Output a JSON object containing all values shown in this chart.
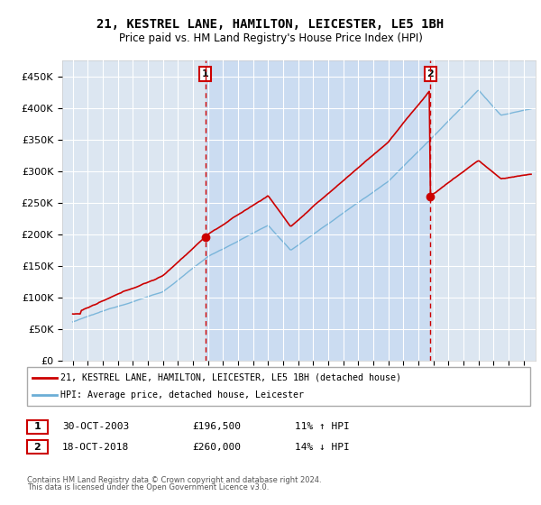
{
  "title": "21, KESTREL LANE, HAMILTON, LEICESTER, LE5 1BH",
  "subtitle": "Price paid vs. HM Land Registry's House Price Index (HPI)",
  "year_start": 1995,
  "year_end": 2025,
  "ylim": [
    0,
    475000
  ],
  "yticks": [
    0,
    50000,
    100000,
    150000,
    200000,
    250000,
    300000,
    350000,
    400000,
    450000
  ],
  "ytick_labels": [
    "£0",
    "£50K",
    "£100K",
    "£150K",
    "£200K",
    "£250K",
    "£300K",
    "£350K",
    "£400K",
    "£450K"
  ],
  "purchase1_year": 2003.83,
  "purchase1_price": 196500,
  "purchase2_year": 2018.79,
  "purchase2_price": 260000,
  "legend_line1": "21, KESTREL LANE, HAMILTON, LEICESTER, LE5 1BH (detached house)",
  "legend_line2": "HPI: Average price, detached house, Leicester",
  "footer1": "Contains HM Land Registry data © Crown copyright and database right 2024.",
  "footer2": "This data is licensed under the Open Government Licence v3.0.",
  "table_row1": [
    "1",
    "30-OCT-2003",
    "£196,500",
    "11% ↑ HPI"
  ],
  "table_row2": [
    "2",
    "18-OCT-2018",
    "£260,000",
    "14% ↓ HPI"
  ],
  "bg_color": "#dce6f1",
  "white_bg": "#ffffff",
  "red_line_color": "#cc0000",
  "blue_line_color": "#6baed6",
  "dashed_line_color": "#cc0000",
  "marker_color": "#cc0000",
  "grid_color": "#ffffff",
  "shade_color": "#c5d9f1",
  "border_color": "#aaaaaa"
}
